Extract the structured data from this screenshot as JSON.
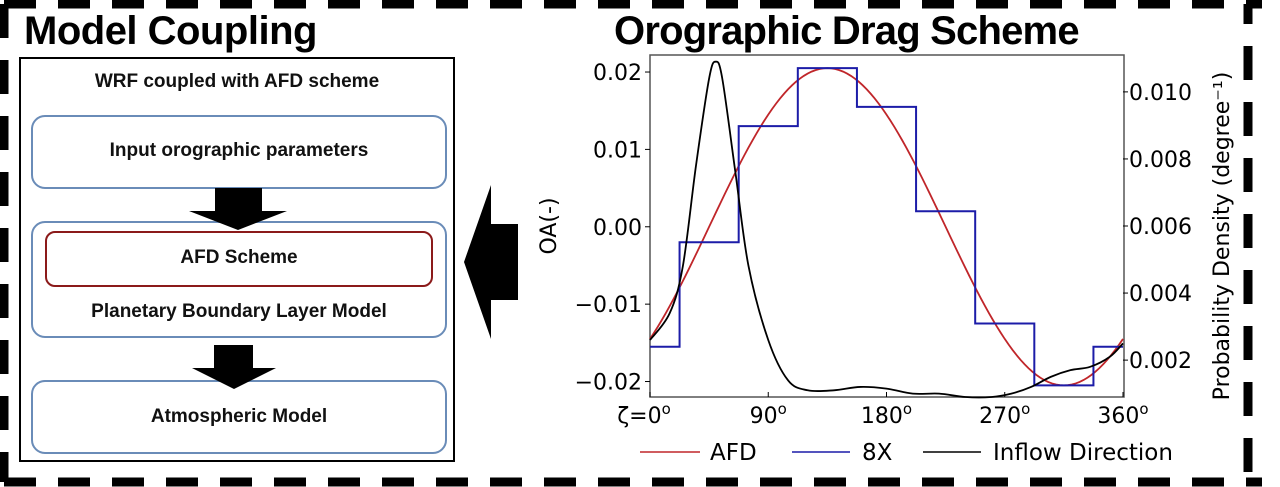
{
  "left_panel": {
    "title": "Model Coupling",
    "box_heading": "WRF coupled with AFD scheme",
    "steps": [
      {
        "label": "Input orographic parameters"
      },
      {
        "label": "AFD Scheme",
        "outer_label": "Planetary Boundary Layer Model"
      },
      {
        "label": "Atmospheric Model"
      }
    ],
    "colors": {
      "box_border": "#6a8cb8",
      "afd_border": "#8b1a1a"
    }
  },
  "right_panel": {
    "title": "Orographic Drag Scheme"
  },
  "chart_data": {
    "type": "line",
    "title": "Orographic Drag Scheme",
    "xlabel": "",
    "ylabel": "OA(-)",
    "y2label": "Probability Density (degree⁻¹)",
    "xticks": [
      "ζ=0°",
      "90°",
      "180°",
      "270°",
      "360°"
    ],
    "xtick_values": [
      0,
      90,
      180,
      270,
      360
    ],
    "yticks": [
      "0.02",
      "0.01",
      "0.00",
      "−0.01",
      "−0.02"
    ],
    "ytick_values": [
      0.02,
      0.01,
      0.0,
      -0.01,
      -0.02
    ],
    "y2ticks": [
      "0.010",
      "0.008",
      "0.006",
      "0.004",
      "0.002"
    ],
    "y2tick_values": [
      0.01,
      0.008,
      0.006,
      0.004,
      0.002
    ],
    "xlim": [
      0,
      360
    ],
    "ylim": [
      -0.022,
      0.0222
    ],
    "y2lim": [
      0.0009,
      0.0111
    ],
    "grid": false,
    "legend_position": "below",
    "series": [
      {
        "name": "AFD",
        "color": "#c0262a",
        "axis": "left",
        "x": [
          0,
          22.5,
          45,
          67.5,
          90,
          112.5,
          135,
          157.5,
          180,
          202.5,
          225,
          247.5,
          270,
          292.5,
          315,
          337.5,
          360
        ],
        "values": [
          -0.0145,
          -0.0078,
          0.0,
          0.0078,
          0.0145,
          0.019,
          0.0205,
          0.019,
          0.0145,
          0.0078,
          0.0,
          -0.0078,
          -0.0145,
          -0.019,
          -0.0205,
          -0.019,
          -0.0145
        ]
      },
      {
        "name": "8X",
        "color": "#1c1ca8",
        "axis": "left",
        "step": true,
        "bin_edges": [
          0,
          22.5,
          67.5,
          112.5,
          157.5,
          202.5,
          247.5,
          292.5,
          337.5,
          360
        ],
        "values": [
          -0.0155,
          -0.002,
          0.013,
          0.0205,
          0.0155,
          0.002,
          -0.0125,
          -0.0205,
          -0.0155
        ]
      },
      {
        "name": "Inflow Direction",
        "color": "#000000",
        "axis": "right",
        "x": [
          0,
          15,
          25,
          35,
          45,
          50,
          55,
          65,
          75,
          90,
          105,
          120,
          140,
          160,
          180,
          200,
          220,
          240,
          260,
          275,
          290,
          305,
          320,
          335,
          350,
          360
        ],
        "values": [
          0.0026,
          0.0034,
          0.0048,
          0.0078,
          0.0104,
          0.0109,
          0.0104,
          0.0076,
          0.0048,
          0.0026,
          0.0014,
          0.0011,
          0.0011,
          0.0012,
          0.00115,
          0.001,
          0.001,
          0.0009,
          0.0009,
          0.001,
          0.0012,
          0.0015,
          0.0017,
          0.0018,
          0.0021,
          0.0025
        ]
      }
    ]
  },
  "legend": {
    "items": [
      {
        "label": "AFD",
        "color": "#c0262a"
      },
      {
        "label": "8X",
        "color": "#1c1ca8"
      },
      {
        "label": "Inflow Direction",
        "color": "#000000"
      }
    ]
  }
}
